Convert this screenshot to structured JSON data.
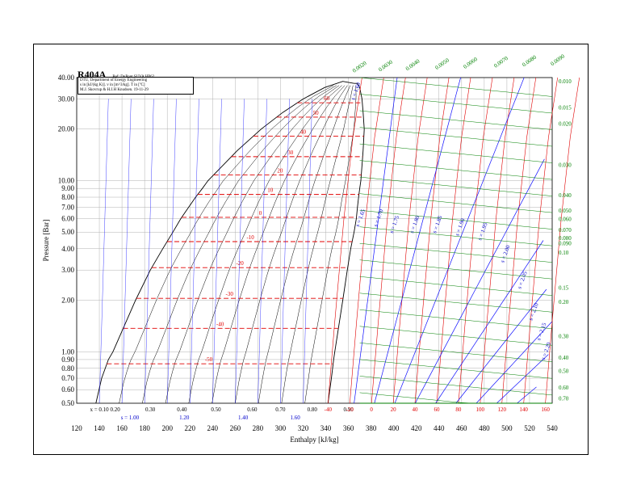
{
  "chart_data": {
    "type": "line",
    "title": "R404A",
    "subtitle": "Ref: DuPont SUVA HP62",
    "info_lines": [
      "DTU, Department of Energy Engineering",
      "s in [kJ/(kg K)]. v in [m^3/kg]. T in [ºC]",
      "M.J. Skovrup & H.J.H Knudsen. 19-11-29"
    ],
    "xlabel": "Enthalpy [kJ/kg]",
    "ylabel": "Pressure [Bar]",
    "xlim": [
      120,
      540
    ],
    "ylim": [
      0.5,
      40
    ],
    "yscale": "log",
    "grid": true,
    "x_ticks": [
      "120",
      "140",
      "160",
      "180",
      "200",
      "220",
      "240",
      "260",
      "280",
      "300",
      "320",
      "340",
      "360",
      "380",
      "400",
      "420",
      "440",
      "460",
      "480",
      "500",
      "520",
      "540"
    ],
    "y_ticks": [
      "0.50",
      "0.60",
      "0.70",
      "0.80",
      "0.90",
      "1.00",
      "2.00",
      "3.00",
      "4.00",
      "5.00",
      "6.00",
      "7.00",
      "8.00",
      "9.00",
      "10.00",
      "20.00",
      "30.00",
      "40.00"
    ],
    "quality_labels": [
      "x = 0.10",
      "0.20",
      "0.30",
      "0.40",
      "0.50",
      "0.60",
      "0.70",
      "0.80",
      "0.90"
    ],
    "entropy_bottom_labels": [
      "s = 1.00",
      "1.20",
      "1.40",
      "1.60"
    ],
    "temperature_labels": [
      "60",
      "50",
      "40",
      "30",
      "20",
      "10",
      "0",
      "-10",
      "-20",
      "-30",
      "-40",
      "-50"
    ],
    "temperature_bottom_labels": [
      "-40",
      "-20",
      "0",
      "20",
      "40",
      "60",
      "80",
      "100",
      "120",
      "140",
      "160"
    ],
    "entropy_labels": [
      "s = 1.60",
      "s = 1.65",
      "s = 1.70",
      "s = 1.75",
      "s = 1.80",
      "s = 1.85",
      "s = 1.90",
      "s = 1.95",
      "s = 2.00",
      "s = 2.05",
      "s = 2.10",
      "s = 2.15",
      "s = 2.20"
    ],
    "volume_top_labels": [
      "0.0020",
      "0.0030",
      "0.0040",
      "0.0050",
      "0.0060",
      "0.0070",
      "0.0080",
      "0.0090"
    ],
    "volume_right_labels": [
      "0.010",
      "0.015",
      "0.020",
      "0.030",
      "0.040",
      "0.050",
      "0.060",
      "0.070",
      "0.080",
      "0.090",
      "0.10",
      "0.15",
      "0.20",
      "0.30",
      "0.40",
      "0.50",
      "0.60",
      "0.70"
    ],
    "colors": {
      "grid": "#b0b0b0",
      "dome": "#000000",
      "isotherm": "#e00000",
      "isentrope": "#1010ff",
      "isochore": "#008000",
      "quality": "#000000",
      "temperature_label": "#e00000",
      "entropy_label": "#0000cc",
      "volume_label": "#008000"
    }
  }
}
